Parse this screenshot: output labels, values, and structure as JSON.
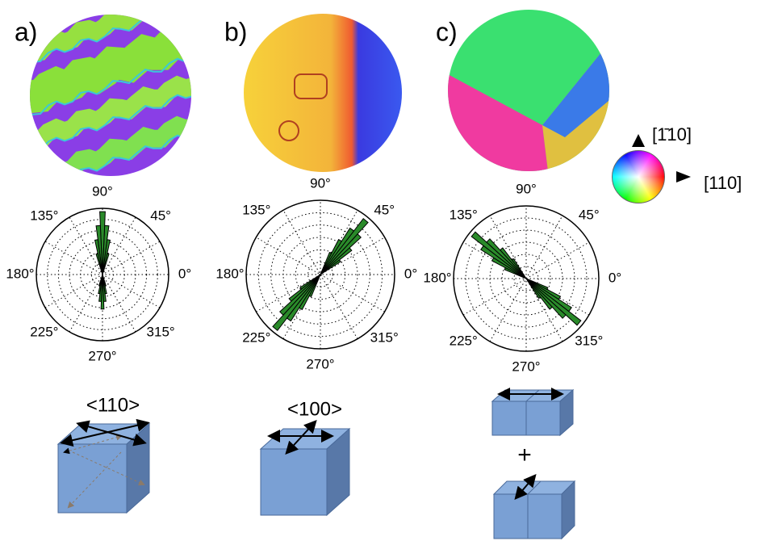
{
  "panels": [
    {
      "label": "a)",
      "angle_labels": [
        "90°",
        "45°",
        "0°",
        "315°",
        "270°",
        "225°",
        "180°",
        "135°"
      ],
      "direction": "<110>"
    },
    {
      "label": "b)",
      "angle_labels": [
        "90°",
        "45°",
        "0°",
        "315°",
        "270°",
        "225°",
        "180°",
        "135°"
      ],
      "direction": "<100>"
    },
    {
      "label": "c)",
      "angle_labels": [
        "90°",
        "45°",
        "0°",
        "315°",
        "270°",
        "225°",
        "180°",
        "135°"
      ],
      "combine": "+"
    }
  ],
  "color_key": {
    "vertical_axis": "[1̄10]",
    "horizontal_axis": "[110]"
  }
}
